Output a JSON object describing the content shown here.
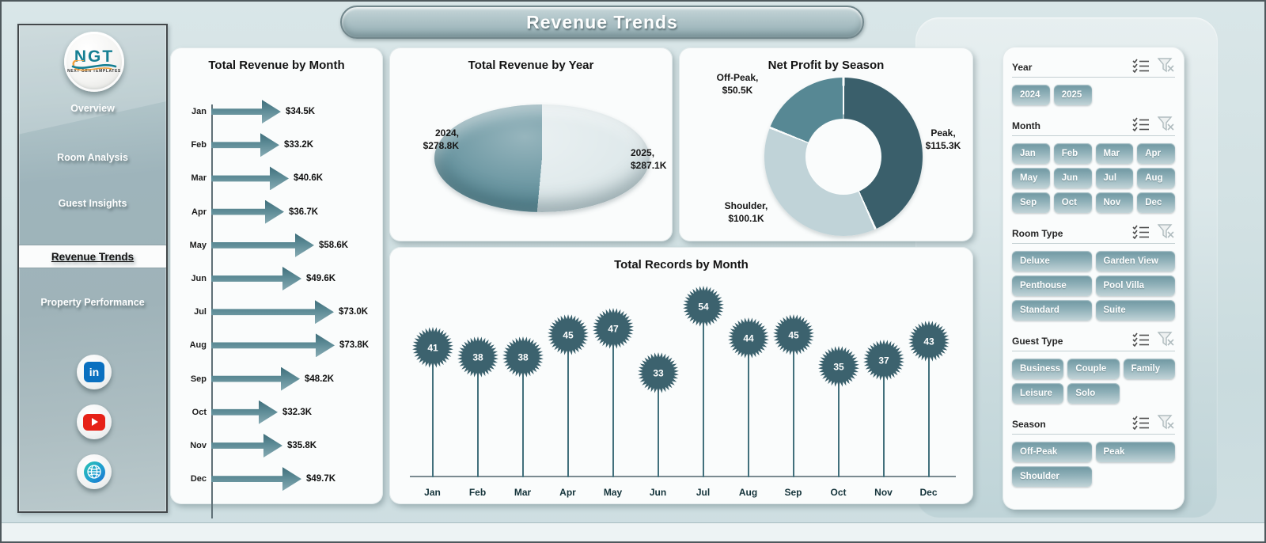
{
  "page": {
    "title": "Revenue Trends"
  },
  "sidebar": {
    "logo": {
      "text": "NGT",
      "subtext": "NEXT GEN TEMPLATES"
    },
    "items": [
      {
        "label": "Overview",
        "active": false
      },
      {
        "label": "Room Analysis",
        "active": false
      },
      {
        "label": "Guest Insights",
        "active": false
      },
      {
        "label": "Revenue Trends",
        "active": true
      },
      {
        "label": "Property Performance",
        "active": false
      }
    ],
    "social": [
      "linkedin",
      "youtube",
      "website"
    ]
  },
  "chart_data": [
    {
      "type": "bar",
      "orientation": "horizontal",
      "title": "Total Revenue  by Month",
      "categories": [
        "Jan",
        "Feb",
        "Mar",
        "Apr",
        "May",
        "Jun",
        "Jul",
        "Aug",
        "Sep",
        "Oct",
        "Nov",
        "Dec"
      ],
      "values": [
        34.5,
        33.2,
        40.6,
        36.7,
        58.6,
        49.6,
        73.0,
        73.8,
        48.2,
        32.3,
        35.8,
        49.7
      ],
      "value_labels": [
        "$34.5K",
        "$33.2K",
        "$40.6K",
        "$36.7K",
        "$58.6K",
        "$49.6K",
        "$73.0K",
        "$73.8K",
        "$48.2K",
        "$32.3K",
        "$35.8K",
        "$49.7K"
      ],
      "xlabel": "",
      "ylabel": "",
      "unit": "USD thousands",
      "bar_color": "#5d8b96"
    },
    {
      "type": "pie",
      "title": "Total Revenue by Year",
      "categories": [
        "2025",
        "2024"
      ],
      "values": [
        287.1,
        278.8
      ],
      "colors": [
        "#dfe9eb",
        "#5f8e9a"
      ],
      "labels": [
        {
          "line1": "2025,",
          "line2": "$287.1K"
        },
        {
          "line1": "2024,",
          "line2": "$278.8K"
        }
      ],
      "legend_position": "none"
    },
    {
      "type": "pie",
      "subtype": "donut",
      "title": "Net Profit by Season",
      "categories": [
        "Peak",
        "Shoulder",
        "Off-Peak"
      ],
      "values": [
        115.3,
        100.1,
        50.5
      ],
      "colors": [
        "#3a5f6b",
        "#c0d3d8",
        "#578894"
      ],
      "labels": [
        {
          "line1": "Peak,",
          "line2": "$115.3K"
        },
        {
          "line1": "Shoulder,",
          "line2": "$100.1K"
        },
        {
          "line1": "Off-Peak,",
          "line2": "$50.5K"
        }
      ],
      "legend_position": "none"
    },
    {
      "type": "line",
      "subtype": "lollipop",
      "title": "Total Records by Month",
      "categories": [
        "Jan",
        "Feb",
        "Mar",
        "Apr",
        "May",
        "Jun",
        "Jul",
        "Aug",
        "Sep",
        "Oct",
        "Nov",
        "Dec"
      ],
      "values": [
        41,
        38,
        38,
        45,
        47,
        33,
        54,
        44,
        45,
        35,
        37,
        43
      ],
      "xlabel": "",
      "ylabel": "",
      "ylim": [
        0,
        60
      ],
      "marker_color": "#3c626e"
    }
  ],
  "filters": {
    "sections": [
      {
        "title": "Year",
        "cols": 4,
        "options": [
          "2024",
          "2025"
        ]
      },
      {
        "title": "Month",
        "cols": 4,
        "options": [
          "Jan",
          "Feb",
          "Mar",
          "Apr",
          "May",
          "Jun",
          "Jul",
          "Aug",
          "Sep",
          "Oct",
          "Nov",
          "Dec"
        ]
      },
      {
        "title": "Room Type",
        "cols": 2,
        "options": [
          "Deluxe",
          "Garden View",
          "Penthouse",
          "Pool Villa",
          "Standard",
          "Suite"
        ]
      },
      {
        "title": "Guest Type",
        "cols": 3,
        "options": [
          "Business",
          "Couple",
          "Family",
          "Leisure",
          "Solo"
        ]
      },
      {
        "title": "Season",
        "cols": 2,
        "options": [
          "Off-Peak",
          "Peak",
          "Shoulder"
        ]
      }
    ],
    "header_icons": [
      "select-all",
      "clear-filter"
    ]
  },
  "colors": {
    "accent_dark": "#3a5f6b",
    "accent_mid": "#578894",
    "accent_light": "#c0d3d8",
    "button_top": "#6e97a1",
    "button_bottom": "#c2d4d8",
    "card_bg": "#fafcfc"
  }
}
